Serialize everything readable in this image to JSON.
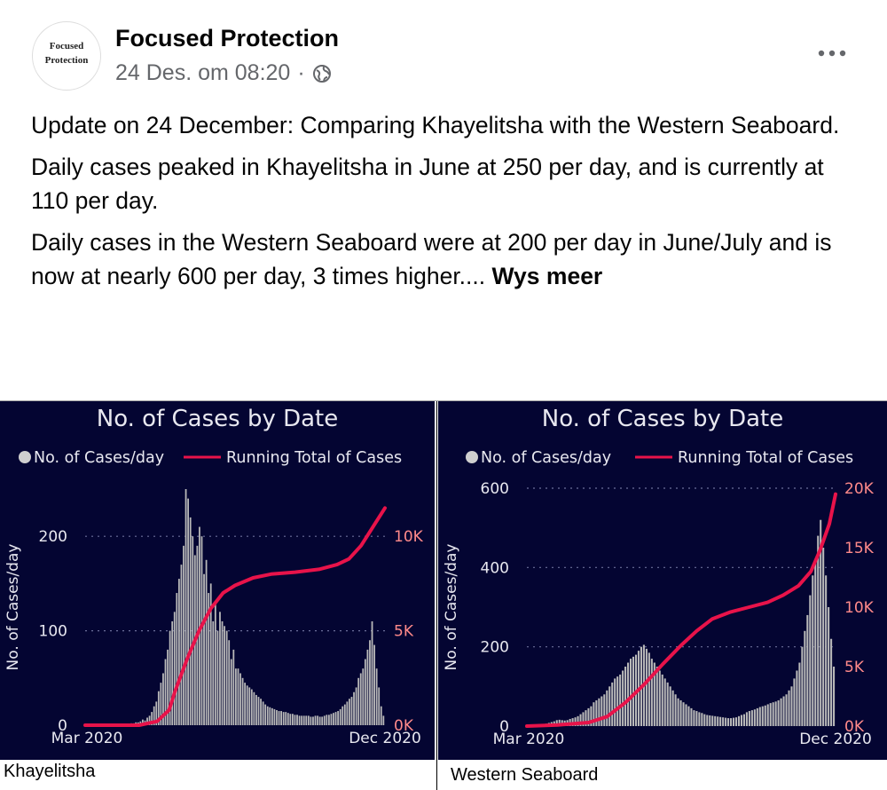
{
  "post": {
    "page_name": "Focused Protection",
    "avatar_text": [
      "Focused",
      "Protection"
    ],
    "timestamp": "24 Des. om 08:20",
    "separator": "·",
    "paragraphs": [
      "Update on 24 December: Comparing Khayelitsha with the Western Seaboard.",
      "Daily cases peaked in Khayelitsha in June at 250 per day, and is currently at 110 per day.",
      "Daily cases in the Western Seaboard were at 200 per day in June/July and is now at nearly 600 per day, 3 times higher...."
    ],
    "see_more": "Wys meer"
  },
  "captions": {
    "left": "Khayelitsha",
    "right": "Western Seaboard"
  },
  "colors": {
    "panel_bg": "#040532",
    "bars": "#b9b9b9",
    "line": "#e8134a",
    "right_axis": "#ff8a8a",
    "text": "#e8e8f0"
  },
  "chart_data": [
    {
      "type": "bar",
      "title": "No. of Cases by Date",
      "legend": [
        "No. of Cases/day",
        "Running Total of Cases"
      ],
      "ylabel": "No. of Cases/day",
      "x_ticks": [
        "Mar 2020",
        "Dec 2020"
      ],
      "y_ticks": [
        "0",
        "100",
        "200"
      ],
      "y2_ticks": [
        "0K",
        "5K",
        "10K"
      ],
      "ylim": [
        0,
        250
      ],
      "y2lim": [
        0,
        12500
      ],
      "grid_values": [
        100,
        200
      ],
      "series": [
        {
          "name": "No. of Cases/day",
          "kind": "bars",
          "values": [
            0,
            0,
            0,
            0,
            0,
            0,
            0,
            0,
            0,
            0,
            0,
            0,
            0,
            0,
            0,
            0,
            0,
            0,
            1,
            1,
            2,
            2,
            3,
            3,
            4,
            6,
            5,
            8,
            10,
            14,
            20,
            25,
            36,
            45,
            55,
            70,
            80,
            100,
            110,
            120,
            140,
            155,
            170,
            190,
            250,
            240,
            220,
            200,
            180,
            190,
            210,
            200,
            160,
            175,
            140,
            150,
            110,
            130,
            100,
            120,
            110,
            105,
            100,
            90,
            70,
            80,
            60,
            60,
            55,
            50,
            45,
            42,
            40,
            38,
            35,
            32,
            30,
            28,
            25,
            22,
            20,
            19,
            18,
            17,
            16,
            15,
            15,
            14,
            14,
            13,
            12,
            12,
            11,
            11,
            10,
            10,
            10,
            10,
            10,
            9,
            9,
            10,
            10,
            9,
            9,
            10,
            11,
            11,
            12,
            13,
            14,
            15,
            17,
            20,
            22,
            25,
            28,
            30,
            35,
            40,
            50,
            55,
            60,
            70,
            80,
            90,
            110,
            85,
            60,
            40,
            20,
            10
          ]
        },
        {
          "name": "Running Total of Cases",
          "kind": "line",
          "points": [
            [
              0,
              0
            ],
            [
              0.18,
              0
            ],
            [
              0.24,
              200
            ],
            [
              0.28,
              800
            ],
            [
              0.3,
              1800
            ],
            [
              0.34,
              3500
            ],
            [
              0.38,
              5000
            ],
            [
              0.42,
              6200
            ],
            [
              0.46,
              7000
            ],
            [
              0.5,
              7400
            ],
            [
              0.56,
              7800
            ],
            [
              0.62,
              8000
            ],
            [
              0.7,
              8100
            ],
            [
              0.78,
              8250
            ],
            [
              0.84,
              8500
            ],
            [
              0.88,
              8800
            ],
            [
              0.92,
              9500
            ],
            [
              0.96,
              10500
            ],
            [
              1,
              11500
            ]
          ]
        }
      ]
    },
    {
      "type": "bar",
      "title": "No. of Cases by Date",
      "legend": [
        "No. of Cases/day",
        "Running Total of Cases"
      ],
      "ylabel": "No. of Cases/day",
      "x_ticks": [
        "Mar 2020",
        "Dec 2020"
      ],
      "y_ticks": [
        "0",
        "200",
        "400",
        "600"
      ],
      "y2_ticks": [
        "0K",
        "5K",
        "10K",
        "15K",
        "20K"
      ],
      "ylim": [
        0,
        600
      ],
      "y2lim": [
        0,
        20000
      ],
      "grid_values": [
        200,
        400,
        600
      ],
      "series": [
        {
          "name": "No. of Cases/day",
          "kind": "bars",
          "values": [
            0,
            0,
            0,
            0,
            2,
            3,
            5,
            6,
            8,
            10,
            12,
            15,
            16,
            15,
            14,
            15,
            18,
            20,
            22,
            25,
            30,
            35,
            40,
            45,
            50,
            60,
            65,
            70,
            75,
            80,
            90,
            100,
            110,
            120,
            125,
            130,
            140,
            150,
            160,
            170,
            175,
            180,
            190,
            200,
            205,
            195,
            185,
            170,
            160,
            150,
            140,
            130,
            120,
            110,
            100,
            90,
            80,
            70,
            65,
            60,
            55,
            50,
            45,
            40,
            38,
            35,
            33,
            30,
            28,
            27,
            26,
            25,
            24,
            23,
            22,
            21,
            20,
            20,
            21,
            22,
            25,
            28,
            30,
            35,
            38,
            40,
            42,
            45,
            48,
            50,
            52,
            55,
            58,
            60,
            62,
            65,
            70,
            75,
            80,
            90,
            100,
            120,
            140,
            160,
            200,
            240,
            280,
            330,
            380,
            420,
            480,
            520,
            450,
            380,
            300,
            220,
            150
          ]
        },
        {
          "name": "Running Total of Cases",
          "kind": "line",
          "points": [
            [
              0,
              0
            ],
            [
              0.1,
              100
            ],
            [
              0.2,
              300
            ],
            [
              0.26,
              800
            ],
            [
              0.32,
              2000
            ],
            [
              0.38,
              3500
            ],
            [
              0.44,
              5200
            ],
            [
              0.5,
              6800
            ],
            [
              0.55,
              8000
            ],
            [
              0.6,
              9000
            ],
            [
              0.66,
              9600
            ],
            [
              0.72,
              10000
            ],
            [
              0.78,
              10400
            ],
            [
              0.83,
              11000
            ],
            [
              0.88,
              11800
            ],
            [
              0.92,
              13000
            ],
            [
              0.95,
              14800
            ],
            [
              0.98,
              17000
            ],
            [
              1,
              19500
            ]
          ]
        }
      ]
    }
  ]
}
